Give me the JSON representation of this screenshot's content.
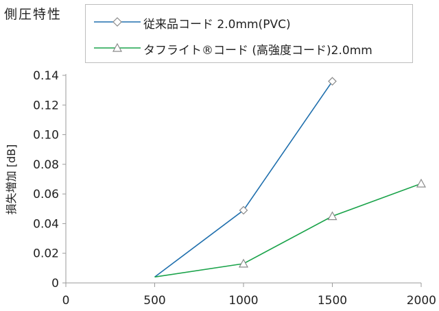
{
  "chart_data": {
    "type": "line",
    "title": "側圧特性",
    "xlabel": "",
    "ylabel": "損失増加 [dB]",
    "xlim": [
      0,
      2000
    ],
    "ylim": [
      0,
      0.14
    ],
    "x_ticks": [
      0,
      500,
      1000,
      1500,
      2000
    ],
    "y_ticks": [
      0,
      0.02,
      0.04,
      0.06,
      0.08,
      0.1,
      0.12,
      0.14
    ],
    "y_tick_labels": [
      "0",
      "0.02",
      "0.04",
      "0.06",
      "0.08",
      "0.10",
      "0.12",
      "0.14"
    ],
    "grid": false,
    "legend_position": "top",
    "series": [
      {
        "name": "従来品コード 2.0mm(PVC)",
        "color": "#1f6fad",
        "marker": "diamond",
        "x": [
          500,
          1000,
          1500
        ],
        "y": [
          0.004,
          0.049,
          0.136
        ]
      },
      {
        "name": "タフライト®コード (高強度コード)2.0mm",
        "color": "#1aa34a",
        "marker": "triangle",
        "x": [
          500,
          1000,
          1500,
          2000
        ],
        "y": [
          0.004,
          0.013,
          0.045,
          0.067
        ]
      }
    ]
  }
}
